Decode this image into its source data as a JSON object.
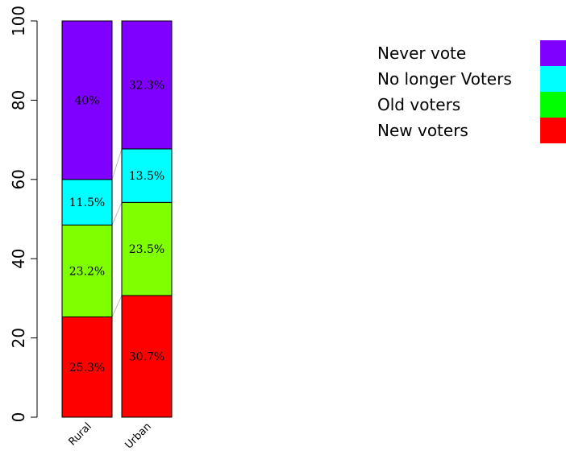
{
  "chart_data": {
    "type": "bar",
    "stacked": true,
    "percent": true,
    "categories": [
      "Rural",
      "Urban"
    ],
    "series": [
      {
        "name": "New voters",
        "color": "#ff0000",
        "values": [
          25.3,
          30.7
        ],
        "labels": [
          "25.3%",
          "30.7%"
        ]
      },
      {
        "name": "Old voters",
        "color": "#80ff00",
        "values": [
          23.2,
          23.5
        ],
        "labels": [
          "23.2%",
          "23.5%"
        ]
      },
      {
        "name": "No longer Voters",
        "color": "#00ffff",
        "values": [
          11.5,
          13.5
        ],
        "labels": [
          "11.5%",
          "13.5%"
        ]
      },
      {
        "name": "Never vote",
        "color": "#8000ff",
        "values": [
          40,
          32.3
        ],
        "labels": [
          "40%",
          "32.3%"
        ]
      }
    ],
    "legend": {
      "position": "top-right",
      "entries": [
        {
          "label": "Never vote",
          "color": "#8000ff"
        },
        {
          "label": "No longer Voters",
          "color": "#00ffff"
        },
        {
          "label": "Old voters",
          "color": "#00ff00"
        },
        {
          "label": "New voters",
          "color": "#ff0000"
        }
      ]
    },
    "y_ticks": [
      "0",
      "20",
      "40",
      "60",
      "80",
      "100"
    ],
    "ylim": [
      0,
      100
    ],
    "title": "",
    "xlabel": "",
    "ylabel": ""
  }
}
